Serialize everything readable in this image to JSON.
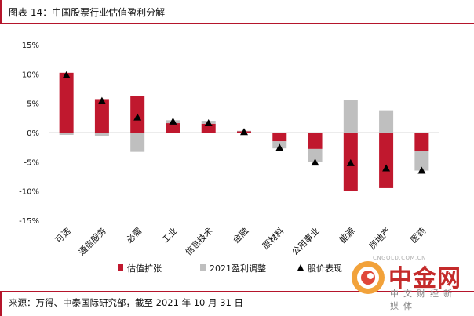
{
  "title": "图表 14：中国股票行业估值盈利分解",
  "source": "来源：万得、中泰国际研究部，截至 2021 年 10 月 31 日",
  "watermark": {
    "brand": "中金网",
    "tagline": "中文财经新媒体",
    "url": "CNGOLD.COM.CN",
    "logo": "spiral-logo-icon"
  },
  "colors": {
    "valuation": "#c0182e",
    "earnings": "#bfbfbf",
    "price": "#000000",
    "accent": "#b5152b"
  },
  "chart_data": {
    "type": "bar",
    "stacked": true,
    "categories": [
      "可选",
      "通信服务",
      "必需",
      "工业",
      "信息技术",
      "金融",
      "原材料",
      "公用事业",
      "能源",
      "房地产",
      "医药"
    ],
    "ylim": [
      -15,
      15
    ],
    "yticks": [
      -15,
      -10,
      -5,
      0,
      5,
      10,
      15
    ],
    "ytick_labels": [
      "-15%",
      "-10%",
      "-5%",
      "0%",
      "5%",
      "10%",
      "15%"
    ],
    "legend_position": "bottom",
    "series": [
      {
        "name": "估值扩张",
        "kind": "bar",
        "values": [
          10.2,
          5.7,
          6.2,
          1.6,
          1.5,
          0.2,
          -1.5,
          -2.8,
          -10.0,
          -9.5,
          -3.2
        ]
      },
      {
        "name": "2021盈利调整",
        "kind": "bar",
        "values": [
          -0.4,
          -0.6,
          -3.3,
          0.5,
          0.5,
          0.1,
          -1.2,
          -2.2,
          5.6,
          3.8,
          -3.3
        ]
      },
      {
        "name": "股价表现",
        "kind": "marker",
        "values": [
          9.8,
          5.4,
          2.6,
          1.9,
          1.6,
          0.1,
          -2.6,
          -5.1,
          -5.2,
          -6.1,
          -6.5
        ]
      }
    ]
  }
}
